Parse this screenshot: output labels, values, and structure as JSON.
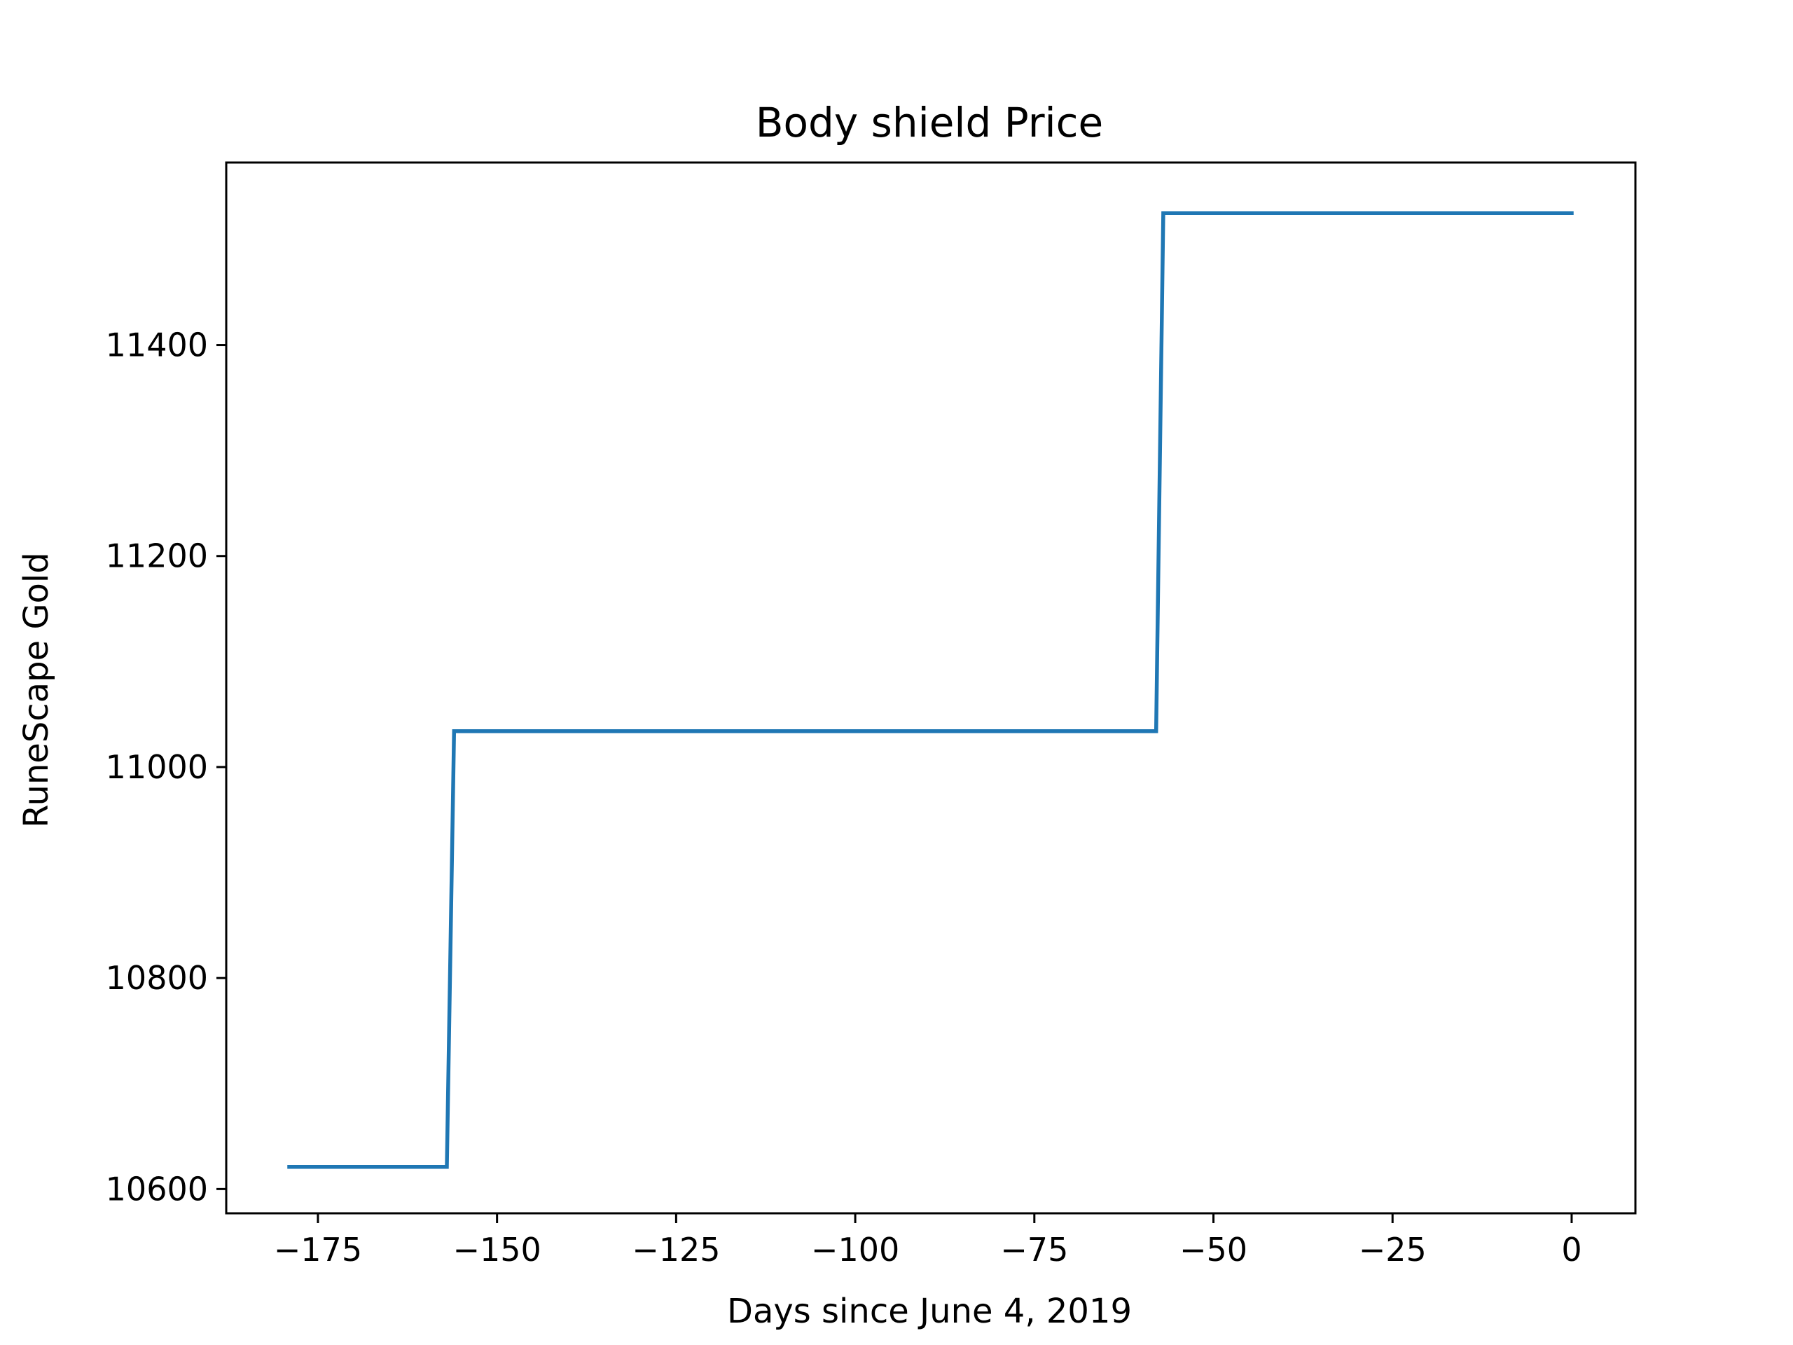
{
  "chart_data": {
    "type": "line",
    "title": "Body shield Price",
    "xlabel": "Days since June 4, 2019",
    "ylabel": "RuneScape Gold",
    "xlim": [
      -187.8,
      8.9
    ],
    "ylim": [
      10577,
      11573
    ],
    "x_ticks": [
      -175,
      -150,
      -125,
      -100,
      -75,
      -50,
      -25,
      0
    ],
    "x_tick_labels": [
      "−175",
      "−150",
      "−125",
      "−100",
      "−75",
      "−50",
      "−25",
      "0"
    ],
    "y_ticks": [
      10600,
      10800,
      11000,
      11200,
      11400
    ],
    "y_tick_labels": [
      "10600",
      "10800",
      "11000",
      "11200",
      "11400"
    ],
    "grid": false,
    "series": [
      {
        "color": "#1f77b4",
        "x": [
          -179,
          -157,
          -156,
          -58,
          -57,
          0
        ],
        "y": [
          10621,
          10621,
          11034,
          11034,
          11525,
          11525
        ]
      }
    ]
  }
}
